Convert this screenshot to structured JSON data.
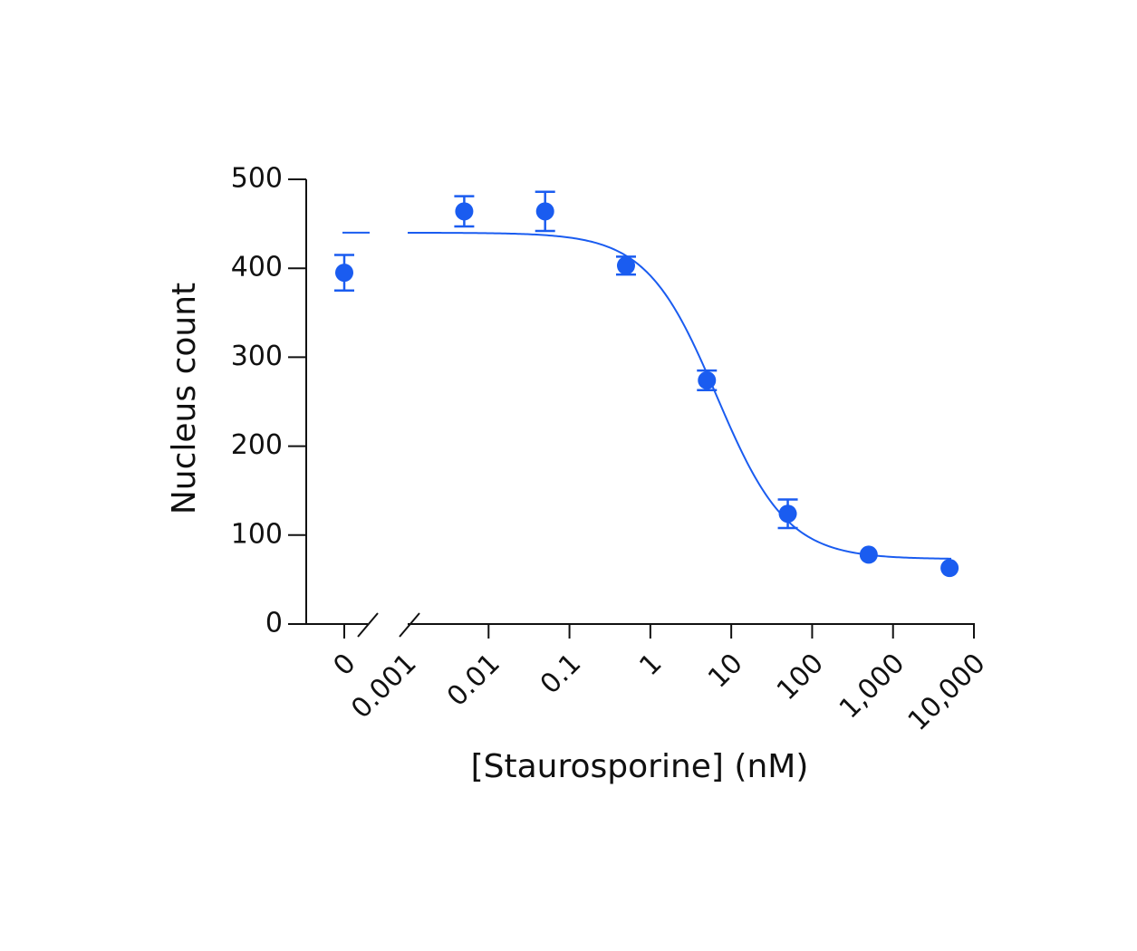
{
  "chart_data": {
    "type": "dose-response",
    "xlabel": "[Staurosporine] (nM)",
    "ylabel": "Nucleus count",
    "x": [
      0,
      0.005,
      0.05,
      0.5,
      5,
      50,
      500,
      5000
    ],
    "series": [
      {
        "color": "#1a5cf0",
        "values": [
          395,
          464,
          464,
          403,
          274,
          124,
          78,
          63
        ],
        "errors": [
          20,
          17,
          22,
          10,
          11,
          16,
          null,
          null
        ]
      }
    ],
    "fit": {
      "top": 440,
      "bottom": 73,
      "ic50": 6.6,
      "hill": 1
    },
    "xscale": "log",
    "xlim": [
      0.001,
      10000
    ],
    "xticks": [
      0,
      0.001,
      0.01,
      0.1,
      1,
      10,
      100,
      {
        "value": 1000,
        "label": "1,000"
      },
      {
        "value": 10000,
        "label": "10,000"
      }
    ],
    "ylim": [
      0,
      500
    ],
    "yticks": [
      0,
      100,
      200,
      300,
      400,
      500
    ]
  }
}
